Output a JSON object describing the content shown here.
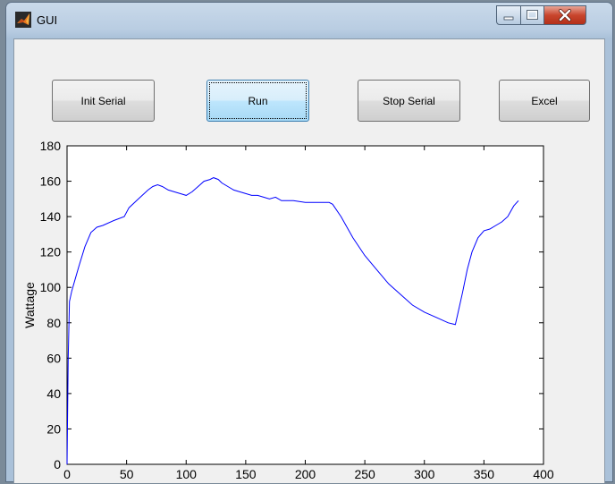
{
  "window": {
    "title": "GUI",
    "app_icon": "matlab-icon",
    "controls": [
      "minimize-icon",
      "maximize-icon",
      "close-icon"
    ]
  },
  "buttons": {
    "init_serial": "Init Serial",
    "run": "Run",
    "stop_serial": "Stop Serial",
    "excel": "Excel"
  },
  "colors": {
    "line": "#0000ff",
    "active_button": "#a7d9f5"
  },
  "chart_data": {
    "type": "line",
    "title": "",
    "xlabel": "",
    "ylabel": "Wattage",
    "xlim": [
      0,
      400
    ],
    "ylim": [
      0,
      180
    ],
    "xticks": [
      0,
      50,
      100,
      150,
      200,
      250,
      300,
      350,
      400
    ],
    "yticks": [
      0,
      20,
      40,
      60,
      80,
      100,
      120,
      140,
      160,
      180
    ],
    "grid": false,
    "series": [
      {
        "color": "#0000ff",
        "x": [
          0,
          1,
          2,
          4,
          7,
          10,
          15,
          20,
          25,
          30,
          40,
          48,
          52,
          60,
          68,
          72,
          76,
          80,
          85,
          90,
          95,
          100,
          105,
          110,
          115,
          120,
          123,
          127,
          130,
          135,
          140,
          145,
          150,
          155,
          160,
          165,
          170,
          175,
          180,
          185,
          190,
          200,
          210,
          220,
          223,
          230,
          240,
          250,
          260,
          270,
          280,
          290,
          300,
          310,
          320,
          326,
          328,
          332,
          336,
          340,
          345,
          350,
          355,
          360,
          365,
          370,
          375,
          379
        ],
        "y": [
          0,
          60,
          92,
          98,
          105,
          112,
          123,
          131,
          134,
          135,
          138,
          140,
          145,
          150,
          155,
          157,
          158,
          157,
          155,
          154,
          153,
          152,
          154,
          157,
          160,
          161,
          162,
          161,
          159,
          157,
          155,
          154,
          153,
          152,
          152,
          151,
          150,
          151,
          149,
          149,
          149,
          148,
          148,
          148,
          147,
          140,
          128,
          118,
          110,
          102,
          96,
          90,
          86,
          83,
          80,
          79,
          85,
          97,
          110,
          120,
          128,
          132,
          133,
          135,
          137,
          140,
          146,
          149
        ]
      }
    ]
  }
}
